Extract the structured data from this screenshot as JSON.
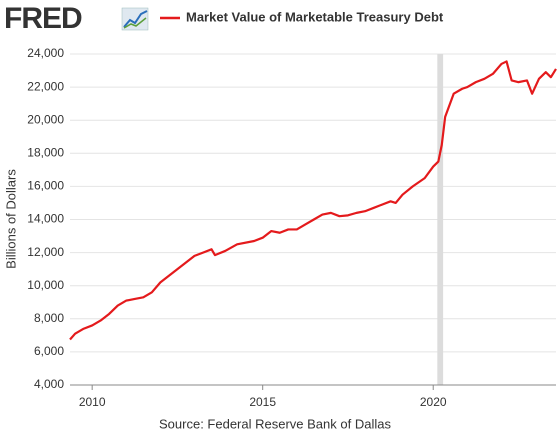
{
  "logo": "FRED",
  "chart_data": {
    "type": "line",
    "title": "Market Value of Marketable Treasury Debt",
    "y_label": "Billions of Dollars",
    "source": "Source: Federal Reserve Bank of Dallas",
    "x": [
      2009.35,
      2009.5,
      2009.75,
      2010.0,
      2010.25,
      2010.5,
      2010.75,
      2011.0,
      2011.25,
      2011.5,
      2011.75,
      2012.0,
      2012.25,
      2012.5,
      2012.75,
      2013.0,
      2013.25,
      2013.5,
      2013.6,
      2013.9,
      2014.25,
      2014.75,
      2015.0,
      2015.25,
      2015.5,
      2015.75,
      2016.0,
      2016.25,
      2016.5,
      2016.75,
      2017.0,
      2017.25,
      2017.5,
      2017.75,
      2018.0,
      2018.25,
      2018.5,
      2018.75,
      2018.9,
      2019.1,
      2019.4,
      2019.75,
      2020.0,
      2020.15,
      2020.25,
      2020.35,
      2020.6,
      2020.85,
      2021.0,
      2021.25,
      2021.5,
      2021.75,
      2022.0,
      2022.15,
      2022.3,
      2022.5,
      2022.75,
      2022.9,
      2023.1,
      2023.3,
      2023.45,
      2023.6
    ],
    "series": [
      {
        "name": "Market Value of Marketable Treasury Debt",
        "color": "#e41a1c",
        "values": [
          6750,
          7100,
          7400,
          7600,
          7900,
          8300,
          8800,
          9100,
          9200,
          9300,
          9600,
          10200,
          10600,
          11000,
          11400,
          11800,
          12000,
          12200,
          11850,
          12100,
          12500,
          12700,
          12900,
          13300,
          13200,
          13400,
          13400,
          13700,
          14000,
          14300,
          14400,
          14200,
          14250,
          14400,
          14500,
          14700,
          14900,
          15100,
          15000,
          15500,
          16000,
          16500,
          17200,
          17500,
          18500,
          20200,
          21600,
          21900,
          22000,
          22300,
          22500,
          22800,
          23400,
          23550,
          22400,
          22300,
          22400,
          21600,
          22500,
          22900,
          22600,
          23100
        ]
      }
    ],
    "recessions": [
      {
        "start": 2020.12,
        "end": 2020.29
      }
    ],
    "xlim": [
      2009.35,
      2023.6
    ],
    "xticks": [
      2010,
      2015,
      2020
    ],
    "ylim": [
      4000,
      24000
    ],
    "yticks": [
      {
        "value": 4000,
        "label": "4,000"
      },
      {
        "value": 6000,
        "label": "6,000"
      },
      {
        "value": 8000,
        "label": "8,000"
      },
      {
        "value": 10000,
        "label": "10,000"
      },
      {
        "value": 12000,
        "label": "12,000"
      },
      {
        "value": 14000,
        "label": "14,000"
      },
      {
        "value": 16000,
        "label": "16,000"
      },
      {
        "value": 18000,
        "label": "18,000"
      },
      {
        "value": 20000,
        "label": "20,000"
      },
      {
        "value": 22000,
        "label": "22,000"
      },
      {
        "value": 24000,
        "label": "24,000"
      }
    ],
    "grid": true
  }
}
